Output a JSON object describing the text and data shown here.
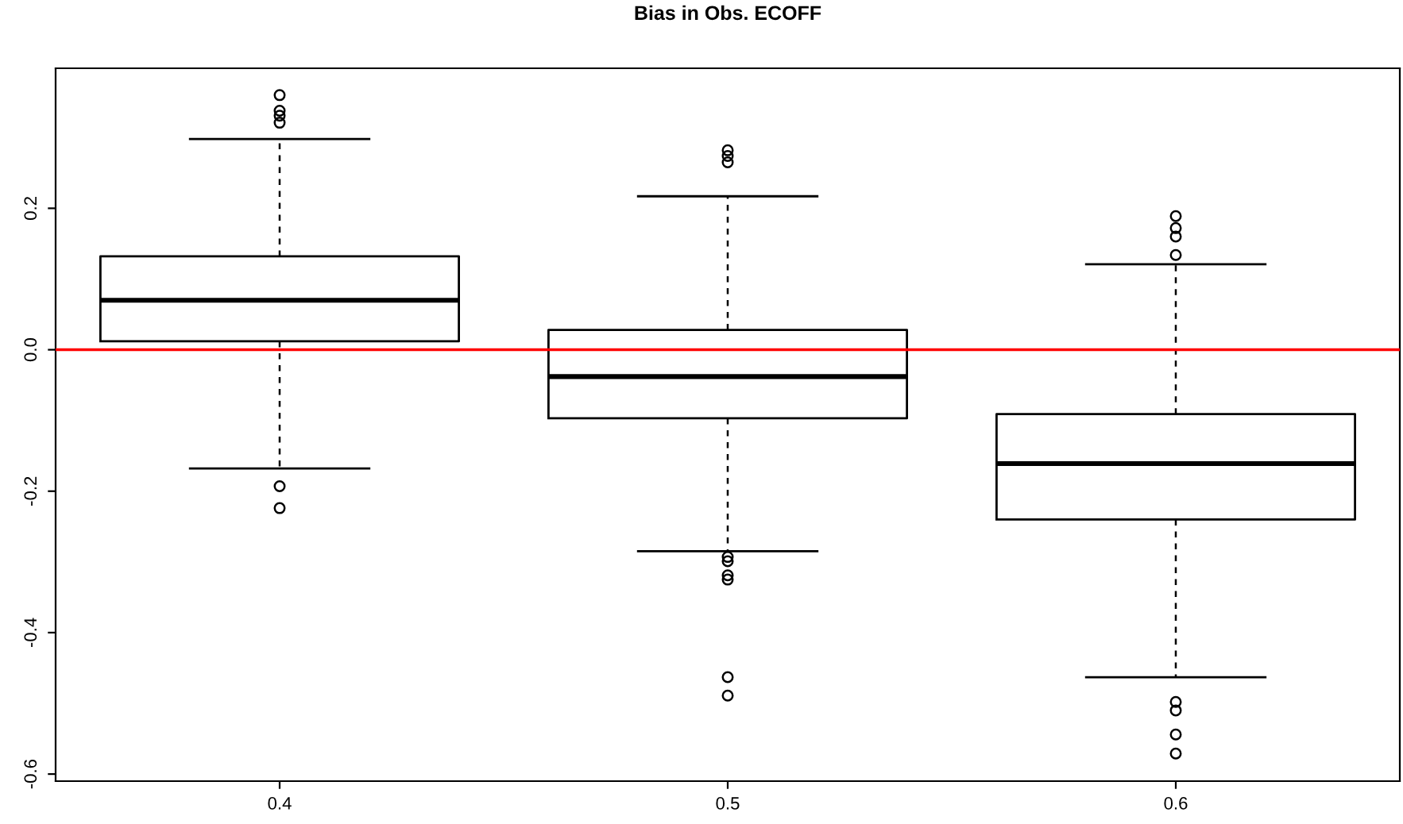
{
  "chart_data": {
    "type": "box",
    "title": "Bias in Obs. ECOFF",
    "categories": [
      "0.4",
      "0.5",
      "0.6"
    ],
    "boxes": [
      {
        "low": -0.168,
        "q1": 0.012,
        "median": 0.07,
        "q3": 0.132,
        "high": 0.298,
        "outliers": [
          0.36,
          0.338,
          0.331,
          0.321,
          -0.193,
          -0.224
        ]
      },
      {
        "low": -0.285,
        "q1": -0.097,
        "median": -0.038,
        "q3": 0.028,
        "high": 0.217,
        "outliers": [
          0.282,
          0.274,
          0.265,
          -0.293,
          -0.299,
          -0.319,
          -0.325,
          -0.463,
          -0.489
        ]
      },
      {
        "low": -0.463,
        "q1": -0.24,
        "median": -0.161,
        "q3": -0.091,
        "high": 0.121,
        "outliers": [
          0.189,
          0.172,
          0.16,
          0.134,
          -0.498,
          -0.51,
          -0.544,
          -0.571
        ]
      }
    ],
    "ylim": [
      -0.61,
      0.398
    ],
    "yticks": [
      {
        "value": -0.6,
        "label": "-0.6"
      },
      {
        "value": -0.4,
        "label": "-0.4"
      },
      {
        "value": -0.2,
        "label": "-0.2"
      },
      {
        "value": 0.0,
        "label": "0.0"
      },
      {
        "value": 0.2,
        "label": "0.2"
      }
    ],
    "ref_lines": [
      {
        "axis": "y",
        "value": 0,
        "color": "#ff0000"
      }
    ],
    "grid": false,
    "legend": false
  }
}
